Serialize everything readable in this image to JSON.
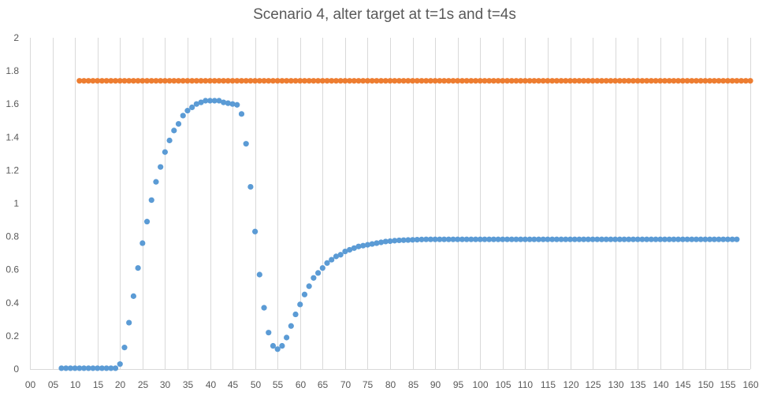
{
  "chart_data": {
    "type": "scatter",
    "title": "Scenario 4, alter target at t=1s and t=4s",
    "xlabel": "",
    "ylabel": "",
    "xlim": [
      0,
      160
    ],
    "ylim": [
      0,
      2
    ],
    "x_tick_values": [
      0,
      5,
      10,
      15,
      20,
      25,
      30,
      35,
      40,
      45,
      50,
      55,
      60,
      65,
      70,
      75,
      80,
      85,
      90,
      95,
      100,
      105,
      110,
      115,
      120,
      125,
      130,
      135,
      140,
      145,
      150,
      155,
      160
    ],
    "x_tick_labels": [
      "00",
      "05",
      "10",
      "15",
      "20",
      "25",
      "30",
      "35",
      "40",
      "45",
      "50",
      "55",
      "60",
      "65",
      "70",
      "75",
      "80",
      "85",
      "90",
      "95",
      "100",
      "105",
      "110",
      "115",
      "120",
      "125",
      "130",
      "135",
      "140",
      "145",
      "150",
      "155",
      "160"
    ],
    "y_tick_values": [
      0,
      0.2,
      0.4,
      0.6,
      0.8,
      1,
      1.2,
      1.4,
      1.6,
      1.8,
      2
    ],
    "y_tick_labels": [
      "0",
      "0.2",
      "0.4",
      "0.6",
      "0.8",
      "1",
      "1.2",
      "1.4",
      "1.6",
      "1.8",
      "2"
    ],
    "grid": "vertical",
    "legend": "none",
    "series": [
      {
        "color": "#5b9bd5",
        "x": [
          7,
          8,
          9,
          10,
          11,
          12,
          13,
          14,
          15,
          16,
          17,
          18,
          19,
          20,
          21,
          22,
          23,
          24,
          25,
          26,
          27,
          28,
          29,
          30,
          31,
          32,
          33,
          34,
          35,
          36,
          37,
          38,
          39,
          40,
          41,
          42,
          43,
          44,
          45,
          46,
          47,
          48,
          49,
          50,
          51,
          52,
          53,
          54,
          55,
          56,
          57,
          58,
          59,
          60,
          61,
          62,
          63,
          64,
          65,
          66,
          67,
          68,
          69,
          70,
          71,
          72,
          73,
          74,
          75,
          76,
          77,
          78,
          79,
          80,
          81,
          82,
          83,
          84,
          85,
          86,
          87,
          88,
          89,
          90,
          91,
          92,
          93,
          94,
          95,
          96,
          97,
          98,
          99,
          100,
          101,
          102,
          103,
          104,
          105,
          106,
          107,
          108,
          109,
          110,
          111,
          112,
          113,
          114,
          115,
          116,
          117,
          118,
          119,
          120,
          121,
          122,
          123,
          124,
          125,
          126,
          127,
          128,
          129,
          130,
          131,
          132,
          133,
          134,
          135,
          136,
          137,
          138,
          139,
          140,
          141,
          142,
          143,
          144,
          145,
          146,
          147,
          148,
          149,
          150,
          151,
          152,
          153,
          154,
          155,
          156,
          157
        ],
        "y": [
          0.005,
          0.005,
          0.005,
          0.005,
          0.005,
          0.005,
          0.005,
          0.005,
          0.005,
          0.005,
          0.005,
          0.005,
          0.005,
          0.03,
          0.13,
          0.28,
          0.44,
          0.61,
          0.76,
          0.89,
          1.02,
          1.13,
          1.22,
          1.31,
          1.38,
          1.44,
          1.48,
          1.53,
          1.56,
          1.58,
          1.6,
          1.61,
          1.62,
          1.62,
          1.62,
          1.62,
          1.61,
          1.605,
          1.6,
          1.595,
          1.54,
          1.36,
          1.1,
          0.83,
          0.57,
          0.37,
          0.22,
          0.14,
          0.12,
          0.14,
          0.19,
          0.26,
          0.33,
          0.39,
          0.45,
          0.5,
          0.55,
          0.58,
          0.61,
          0.64,
          0.66,
          0.68,
          0.69,
          0.71,
          0.72,
          0.73,
          0.74,
          0.745,
          0.75,
          0.755,
          0.76,
          0.765,
          0.77,
          0.772,
          0.775,
          0.777,
          0.778,
          0.779,
          0.78,
          0.781,
          0.782,
          0.783,
          0.783,
          0.783,
          0.783,
          0.783,
          0.783,
          0.783,
          0.783,
          0.783,
          0.783,
          0.783,
          0.783,
          0.783,
          0.783,
          0.783,
          0.783,
          0.783,
          0.783,
          0.783,
          0.783,
          0.783,
          0.783,
          0.783,
          0.783,
          0.783,
          0.783,
          0.783,
          0.783,
          0.783,
          0.783,
          0.783,
          0.783,
          0.783,
          0.783,
          0.783,
          0.783,
          0.783,
          0.783,
          0.783,
          0.783,
          0.783,
          0.783,
          0.783,
          0.783,
          0.783,
          0.783,
          0.783,
          0.783,
          0.783,
          0.783,
          0.783,
          0.783,
          0.783,
          0.783,
          0.783,
          0.783,
          0.783,
          0.783,
          0.783,
          0.783,
          0.783,
          0.783,
          0.783,
          0.783,
          0.783,
          0.783,
          0.783,
          0.783,
          0.783,
          0.783
        ]
      },
      {
        "color": "#ed7d31",
        "x_start": 11,
        "x_end": 160,
        "x_step": 1,
        "y_constant": 1.74
      }
    ]
  }
}
